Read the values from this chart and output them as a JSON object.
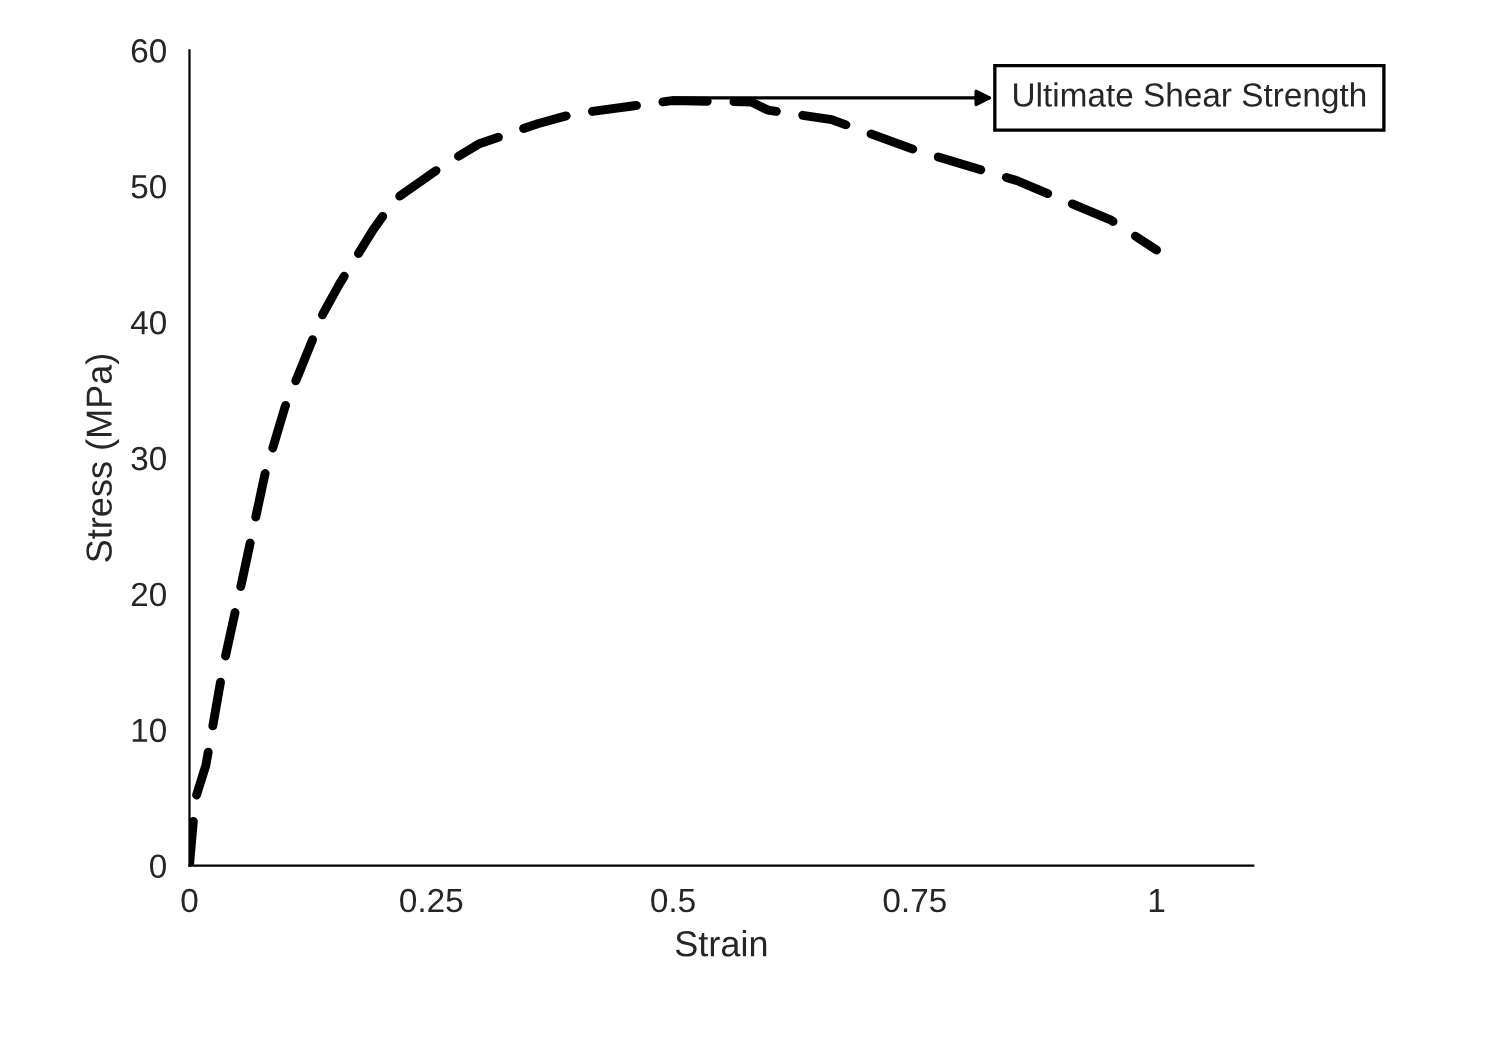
{
  "chart_data": {
    "type": "line",
    "xlabel": "Strain",
    "ylabel": "Stress (MPa)",
    "series": [
      {
        "color": "#000000",
        "line_style": "dashed",
        "x": [
          0,
          0.006,
          0.017,
          0.035,
          0.056,
          0.078,
          0.099,
          0.113,
          0.138,
          0.155,
          0.19,
          0.212,
          0.264,
          0.299,
          0.36,
          0.396,
          0.458,
          0.499,
          0.581,
          0.598,
          0.664,
          0.753,
          0.856,
          0.953,
          1.0
        ],
        "values": [
          0,
          4.9,
          7.4,
          14.7,
          21.5,
          28.8,
          33.8,
          36.2,
          40.6,
          42.8,
          46.8,
          49.0,
          51.6,
          53.1,
          54.6,
          55.3,
          55.9,
          56.3,
          56.2,
          55.6,
          54.9,
          52.6,
          50.4,
          47.5,
          45.3
        ]
      }
    ],
    "xlim": [
      0,
      1.1
    ],
    "xticks": [
      0,
      {
        "value": 0.25,
        "label": "0.25"
      },
      {
        "value": 0.5,
        "label": "0.5"
      },
      {
        "value": 0.75,
        "label": "0.75"
      },
      1
    ],
    "ylim": [
      0,
      60
    ],
    "yticks": [
      0,
      10,
      20,
      30,
      40,
      50,
      60
    ],
    "grid": false,
    "legend": false,
    "marker": "none",
    "annotations": [
      {
        "text": "Ultimate Shear Strength",
        "x": 0.5,
        "y": 56.5
      }
    ]
  }
}
